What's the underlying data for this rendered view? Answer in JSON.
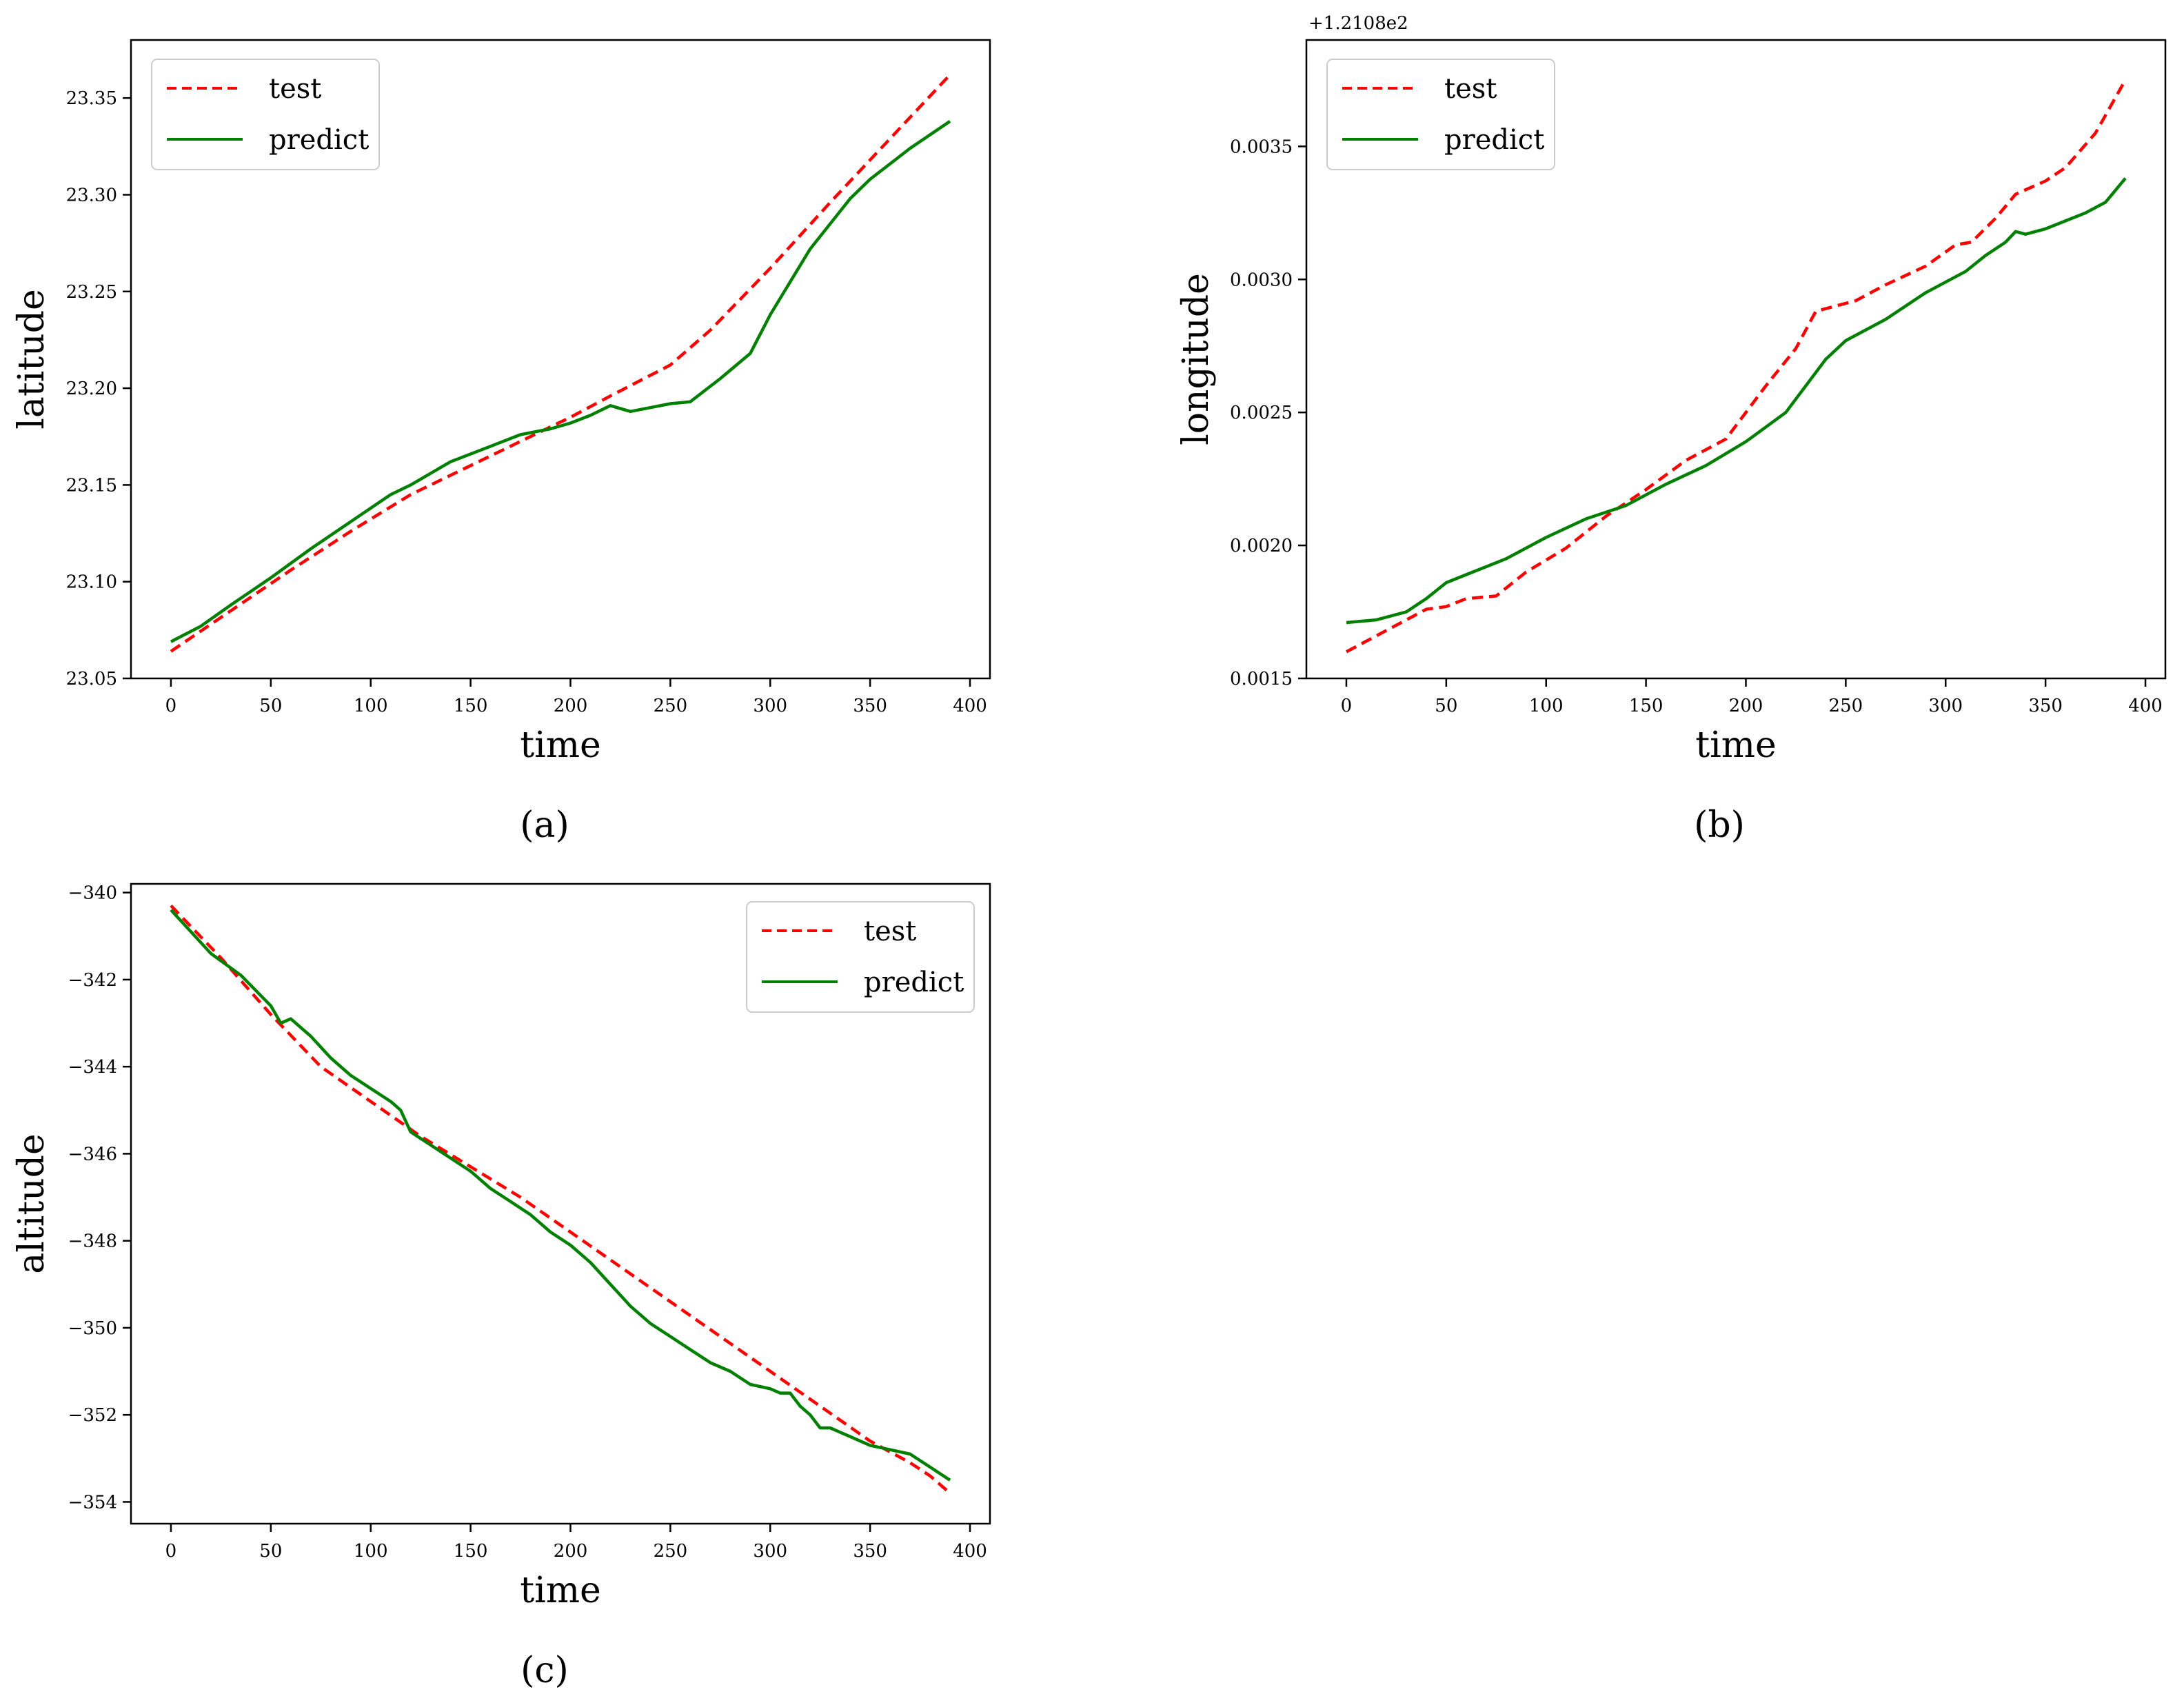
{
  "figure": {
    "captions": [
      "(a)",
      "(b)",
      "(c)"
    ]
  },
  "colors": {
    "test": "#ff0000",
    "predict": "#008000",
    "frame": "#000000"
  },
  "chart_data": [
    {
      "id": "a",
      "type": "line",
      "caption": "(a)",
      "xlabel": "time",
      "ylabel": "latitude",
      "offset_text": "",
      "xlim": [
        -20,
        410
      ],
      "ylim": [
        23.05,
        23.38
      ],
      "xticks": [
        0,
        50,
        100,
        150,
        200,
        250,
        300,
        350,
        400
      ],
      "xtick_labels": [
        "0",
        "50",
        "100",
        "150",
        "200",
        "250",
        "300",
        "350",
        "400"
      ],
      "yticks": [
        23.05,
        23.1,
        23.15,
        23.2,
        23.25,
        23.3,
        23.35
      ],
      "ytick_labels": [
        "23.05",
        "23.10",
        "23.15",
        "23.20",
        "23.25",
        "23.30",
        "23.35"
      ],
      "legend": {
        "position": "top-left",
        "entries": [
          "test",
          "predict"
        ]
      },
      "series": [
        {
          "name": "test",
          "style": "dashed",
          "x": [
            0,
            30,
            60,
            90,
            120,
            150,
            180,
            200,
            220,
            250,
            270,
            300,
            330,
            360,
            390
          ],
          "y": [
            23.064,
            23.085,
            23.106,
            23.126,
            23.145,
            23.16,
            23.175,
            23.185,
            23.196,
            23.212,
            23.23,
            23.262,
            23.296,
            23.329,
            23.362
          ]
        },
        {
          "name": "predict",
          "style": "solid",
          "x": [
            0,
            15,
            30,
            50,
            70,
            90,
            110,
            120,
            140,
            160,
            175,
            190,
            200,
            210,
            220,
            230,
            240,
            250,
            260,
            265,
            275,
            290,
            300,
            310,
            320,
            330,
            340,
            350,
            360,
            370,
            380,
            390
          ],
          "y": [
            23.069,
            23.077,
            23.088,
            23.102,
            23.117,
            23.131,
            23.145,
            23.15,
            23.162,
            23.17,
            23.176,
            23.179,
            23.182,
            23.186,
            23.191,
            23.188,
            23.19,
            23.192,
            23.193,
            23.197,
            23.205,
            23.218,
            23.238,
            23.255,
            23.272,
            23.285,
            23.298,
            23.308,
            23.316,
            23.324,
            23.331,
            23.338
          ]
        }
      ]
    },
    {
      "id": "b",
      "type": "line",
      "caption": "(b)",
      "xlabel": "time",
      "ylabel": "longitude",
      "offset_text": "+1.2108e2",
      "xlim": [
        -20,
        410
      ],
      "ylim": [
        0.0015,
        0.0039
      ],
      "xticks": [
        0,
        50,
        100,
        150,
        200,
        250,
        300,
        350,
        400
      ],
      "xtick_labels": [
        "0",
        "50",
        "100",
        "150",
        "200",
        "250",
        "300",
        "350",
        "400"
      ],
      "yticks": [
        0.0015,
        0.002,
        0.0025,
        0.003,
        0.0035
      ],
      "ytick_labels": [
        "0.0015",
        "0.0020",
        "0.0025",
        "0.0030",
        "0.0035"
      ],
      "legend": {
        "position": "top-left",
        "entries": [
          "test",
          "predict"
        ]
      },
      "series": [
        {
          "name": "test",
          "style": "dashed",
          "x": [
            0,
            20,
            40,
            50,
            60,
            75,
            90,
            110,
            130,
            150,
            170,
            190,
            210,
            225,
            235,
            245,
            255,
            270,
            290,
            305,
            313,
            325,
            335,
            350,
            360,
            375,
            390
          ],
          "y": [
            0.0016,
            0.00168,
            0.00176,
            0.00177,
            0.0018,
            0.00181,
            0.0019,
            0.00199,
            0.00211,
            0.00221,
            0.00232,
            0.0024,
            0.0026,
            0.00274,
            0.00288,
            0.0029,
            0.00292,
            0.00298,
            0.00305,
            0.00313,
            0.00314,
            0.00323,
            0.00332,
            0.00337,
            0.00342,
            0.00355,
            0.00375
          ]
        },
        {
          "name": "predict",
          "style": "solid",
          "x": [
            0,
            15,
            30,
            40,
            50,
            60,
            80,
            100,
            120,
            140,
            160,
            180,
            200,
            220,
            240,
            250,
            270,
            290,
            310,
            320,
            330,
            335,
            340,
            350,
            360,
            370,
            380,
            390
          ],
          "y": [
            0.00171,
            0.00172,
            0.00175,
            0.0018,
            0.00186,
            0.00189,
            0.00195,
            0.00203,
            0.0021,
            0.00215,
            0.00223,
            0.0023,
            0.00239,
            0.0025,
            0.0027,
            0.00277,
            0.00285,
            0.00295,
            0.00303,
            0.00309,
            0.00314,
            0.00318,
            0.00317,
            0.00319,
            0.00322,
            0.00325,
            0.00329,
            0.00338
          ]
        }
      ]
    },
    {
      "id": "c",
      "type": "line",
      "caption": "(c)",
      "xlabel": "time",
      "ylabel": "altitude",
      "offset_text": "",
      "xlim": [
        -20,
        410
      ],
      "ylim": [
        -354.5,
        -339.8
      ],
      "xticks": [
        0,
        50,
        100,
        150,
        200,
        250,
        300,
        350,
        400
      ],
      "xtick_labels": [
        "0",
        "50",
        "100",
        "150",
        "200",
        "250",
        "300",
        "350",
        "400"
      ],
      "yticks": [
        -340,
        -342,
        -344,
        -346,
        -348,
        -350,
        -352,
        -354
      ],
      "ytick_labels": [
        "−340",
        "−342",
        "−344",
        "−346",
        "−348",
        "−350",
        "−352",
        "−354"
      ],
      "legend": {
        "position": "top-right",
        "entries": [
          "test",
          "predict"
        ]
      },
      "series": [
        {
          "name": "test",
          "style": "dashed",
          "x": [
            0,
            25,
            50,
            75,
            100,
            125,
            150,
            175,
            200,
            250,
            300,
            350,
            370,
            380,
            390
          ],
          "y": [
            -340.3,
            -341.5,
            -342.8,
            -344.0,
            -344.8,
            -345.6,
            -346.3,
            -347.0,
            -347.8,
            -349.4,
            -351.0,
            -352.6,
            -353.1,
            -353.4,
            -353.8
          ]
        },
        {
          "name": "predict",
          "style": "solid",
          "x": [
            0,
            10,
            20,
            35,
            50,
            55,
            60,
            70,
            80,
            90,
            100,
            110,
            115,
            120,
            130,
            140,
            150,
            160,
            170,
            180,
            190,
            200,
            210,
            220,
            230,
            240,
            250,
            260,
            270,
            280,
            290,
            300,
            305,
            310,
            315,
            320,
            325,
            330,
            335,
            340,
            350,
            360,
            370,
            380,
            390
          ],
          "y": [
            -340.4,
            -340.9,
            -341.4,
            -341.9,
            -342.6,
            -343.0,
            -342.9,
            -343.3,
            -343.8,
            -344.2,
            -344.5,
            -344.8,
            -345.0,
            -345.5,
            -345.8,
            -346.1,
            -346.4,
            -346.8,
            -347.1,
            -347.4,
            -347.8,
            -348.1,
            -348.5,
            -349.0,
            -349.5,
            -349.9,
            -350.2,
            -350.5,
            -350.8,
            -351.0,
            -351.3,
            -351.4,
            -351.5,
            -351.5,
            -351.8,
            -352.0,
            -352.3,
            -352.3,
            -352.4,
            -352.5,
            -352.7,
            -352.8,
            -352.9,
            -353.2,
            -353.5
          ]
        }
      ]
    }
  ]
}
